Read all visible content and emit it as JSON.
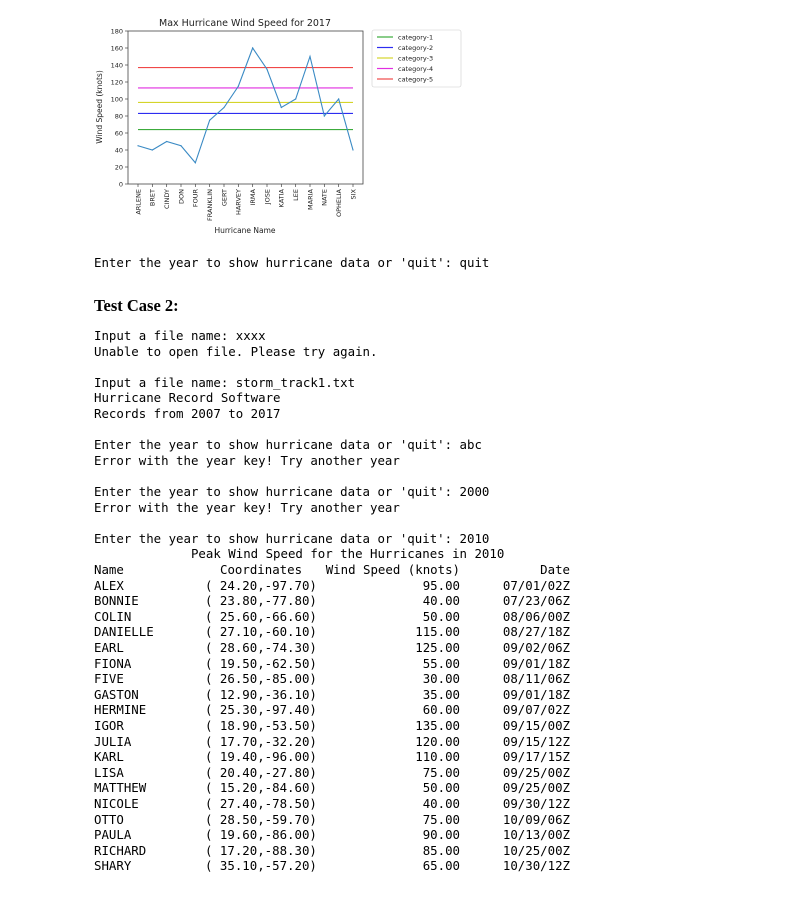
{
  "chart_data": {
    "type": "line",
    "title": "Max Hurricane Wind Speed for 2017",
    "xlabel": "Hurricane Name",
    "ylabel": "Wind Speed (knots)",
    "ylim": [
      0,
      180
    ],
    "yticks": [
      "0",
      "20",
      "40",
      "60",
      "80",
      "100",
      "120",
      "140",
      "160",
      "180"
    ],
    "grid": false,
    "legend_position": "outside-top-right",
    "categories": [
      "ARLENE",
      "BRET",
      "CINDY",
      "DON",
      "FOUR",
      "FRANKLIN",
      "GERT",
      "HARVEY",
      "IRMA",
      "JOSE",
      "KATIA",
      "LEE",
      "MARIA",
      "NATE",
      "OPHELIA",
      "SIX"
    ],
    "series": [
      {
        "values": [
          45,
          40,
          50,
          45,
          25,
          75,
          90,
          115,
          160,
          135,
          90,
          100,
          150,
          80,
          100,
          40
        ],
        "color": "#3a8ac4"
      }
    ],
    "reference_lines": [
      {
        "name": "category-1",
        "value": 64,
        "color": "#3cab3c"
      },
      {
        "name": "category-2",
        "value": 83,
        "color": "#2d2df0"
      },
      {
        "name": "category-3",
        "value": 96,
        "color": "#d4d42a"
      },
      {
        "name": "category-4",
        "value": 113,
        "color": "#e12ee1"
      },
      {
        "name": "category-5",
        "value": 137,
        "color": "#f04848"
      }
    ]
  },
  "console_top": "Enter the year to show hurricane data or 'quit': quit",
  "heading": "Test Case 2:",
  "console_lines": [
    "Input a file name: xxxx",
    "Unable to open file. Please try again.",
    "",
    "Input a file name: storm_track1.txt",
    "Hurricane Record Software",
    "Records from 2007 to 2017",
    "",
    "Enter the year to show hurricane data or 'quit': abc",
    "Error with the year key! Try another year",
    "",
    "Enter the year to show hurricane data or 'quit': 2000",
    "Error with the year key! Try another year",
    "",
    "Enter the year to show hurricane data or 'quit': 2010",
    "             Peak Wind Speed for the Hurricanes in 2010"
  ],
  "table": {
    "headers": {
      "name": "Name",
      "coord": "Coordinates",
      "wind": "Wind Speed (knots)",
      "date": "Date"
    },
    "rows": [
      {
        "name": "ALEX",
        "coord": "( 24.20,-97.70)",
        "wind": "95.00",
        "date": "07/01/02Z"
      },
      {
        "name": "BONNIE",
        "coord": "( 23.80,-77.80)",
        "wind": "40.00",
        "date": "07/23/06Z"
      },
      {
        "name": "COLIN",
        "coord": "( 25.60,-66.60)",
        "wind": "50.00",
        "date": "08/06/00Z"
      },
      {
        "name": "DANIELLE",
        "coord": "( 27.10,-60.10)",
        "wind": "115.00",
        "date": "08/27/18Z"
      },
      {
        "name": "EARL",
        "coord": "( 28.60,-74.30)",
        "wind": "125.00",
        "date": "09/02/06Z"
      },
      {
        "name": "FIONA",
        "coord": "( 19.50,-62.50)",
        "wind": "55.00",
        "date": "09/01/18Z"
      },
      {
        "name": "FIVE",
        "coord": "( 26.50,-85.00)",
        "wind": "30.00",
        "date": "08/11/06Z"
      },
      {
        "name": "GASTON",
        "coord": "( 12.90,-36.10)",
        "wind": "35.00",
        "date": "09/01/18Z"
      },
      {
        "name": "HERMINE",
        "coord": "( 25.30,-97.40)",
        "wind": "60.00",
        "date": "09/07/02Z"
      },
      {
        "name": "IGOR",
        "coord": "( 18.90,-53.50)",
        "wind": "135.00",
        "date": "09/15/00Z"
      },
      {
        "name": "JULIA",
        "coord": "( 17.70,-32.20)",
        "wind": "120.00",
        "date": "09/15/12Z"
      },
      {
        "name": "KARL",
        "coord": "( 19.40,-96.00)",
        "wind": "110.00",
        "date": "09/17/15Z"
      },
      {
        "name": "LISA",
        "coord": "( 20.40,-27.80)",
        "wind": "75.00",
        "date": "09/25/00Z"
      },
      {
        "name": "MATTHEW",
        "coord": "( 15.20,-84.60)",
        "wind": "50.00",
        "date": "09/25/00Z"
      },
      {
        "name": "NICOLE",
        "coord": "( 27.40,-78.50)",
        "wind": "40.00",
        "date": "09/30/12Z"
      },
      {
        "name": "OTTO",
        "coord": "( 28.50,-59.70)",
        "wind": "75.00",
        "date": "10/09/06Z"
      },
      {
        "name": "PAULA",
        "coord": "( 19.60,-86.00)",
        "wind": "90.00",
        "date": "10/13/00Z"
      },
      {
        "name": "RICHARD",
        "coord": "( 17.20,-88.30)",
        "wind": "85.00",
        "date": "10/25/00Z"
      },
      {
        "name": "SHARY",
        "coord": "( 35.10,-57.20)",
        "wind": "65.00",
        "date": "10/30/12Z"
      }
    ]
  }
}
